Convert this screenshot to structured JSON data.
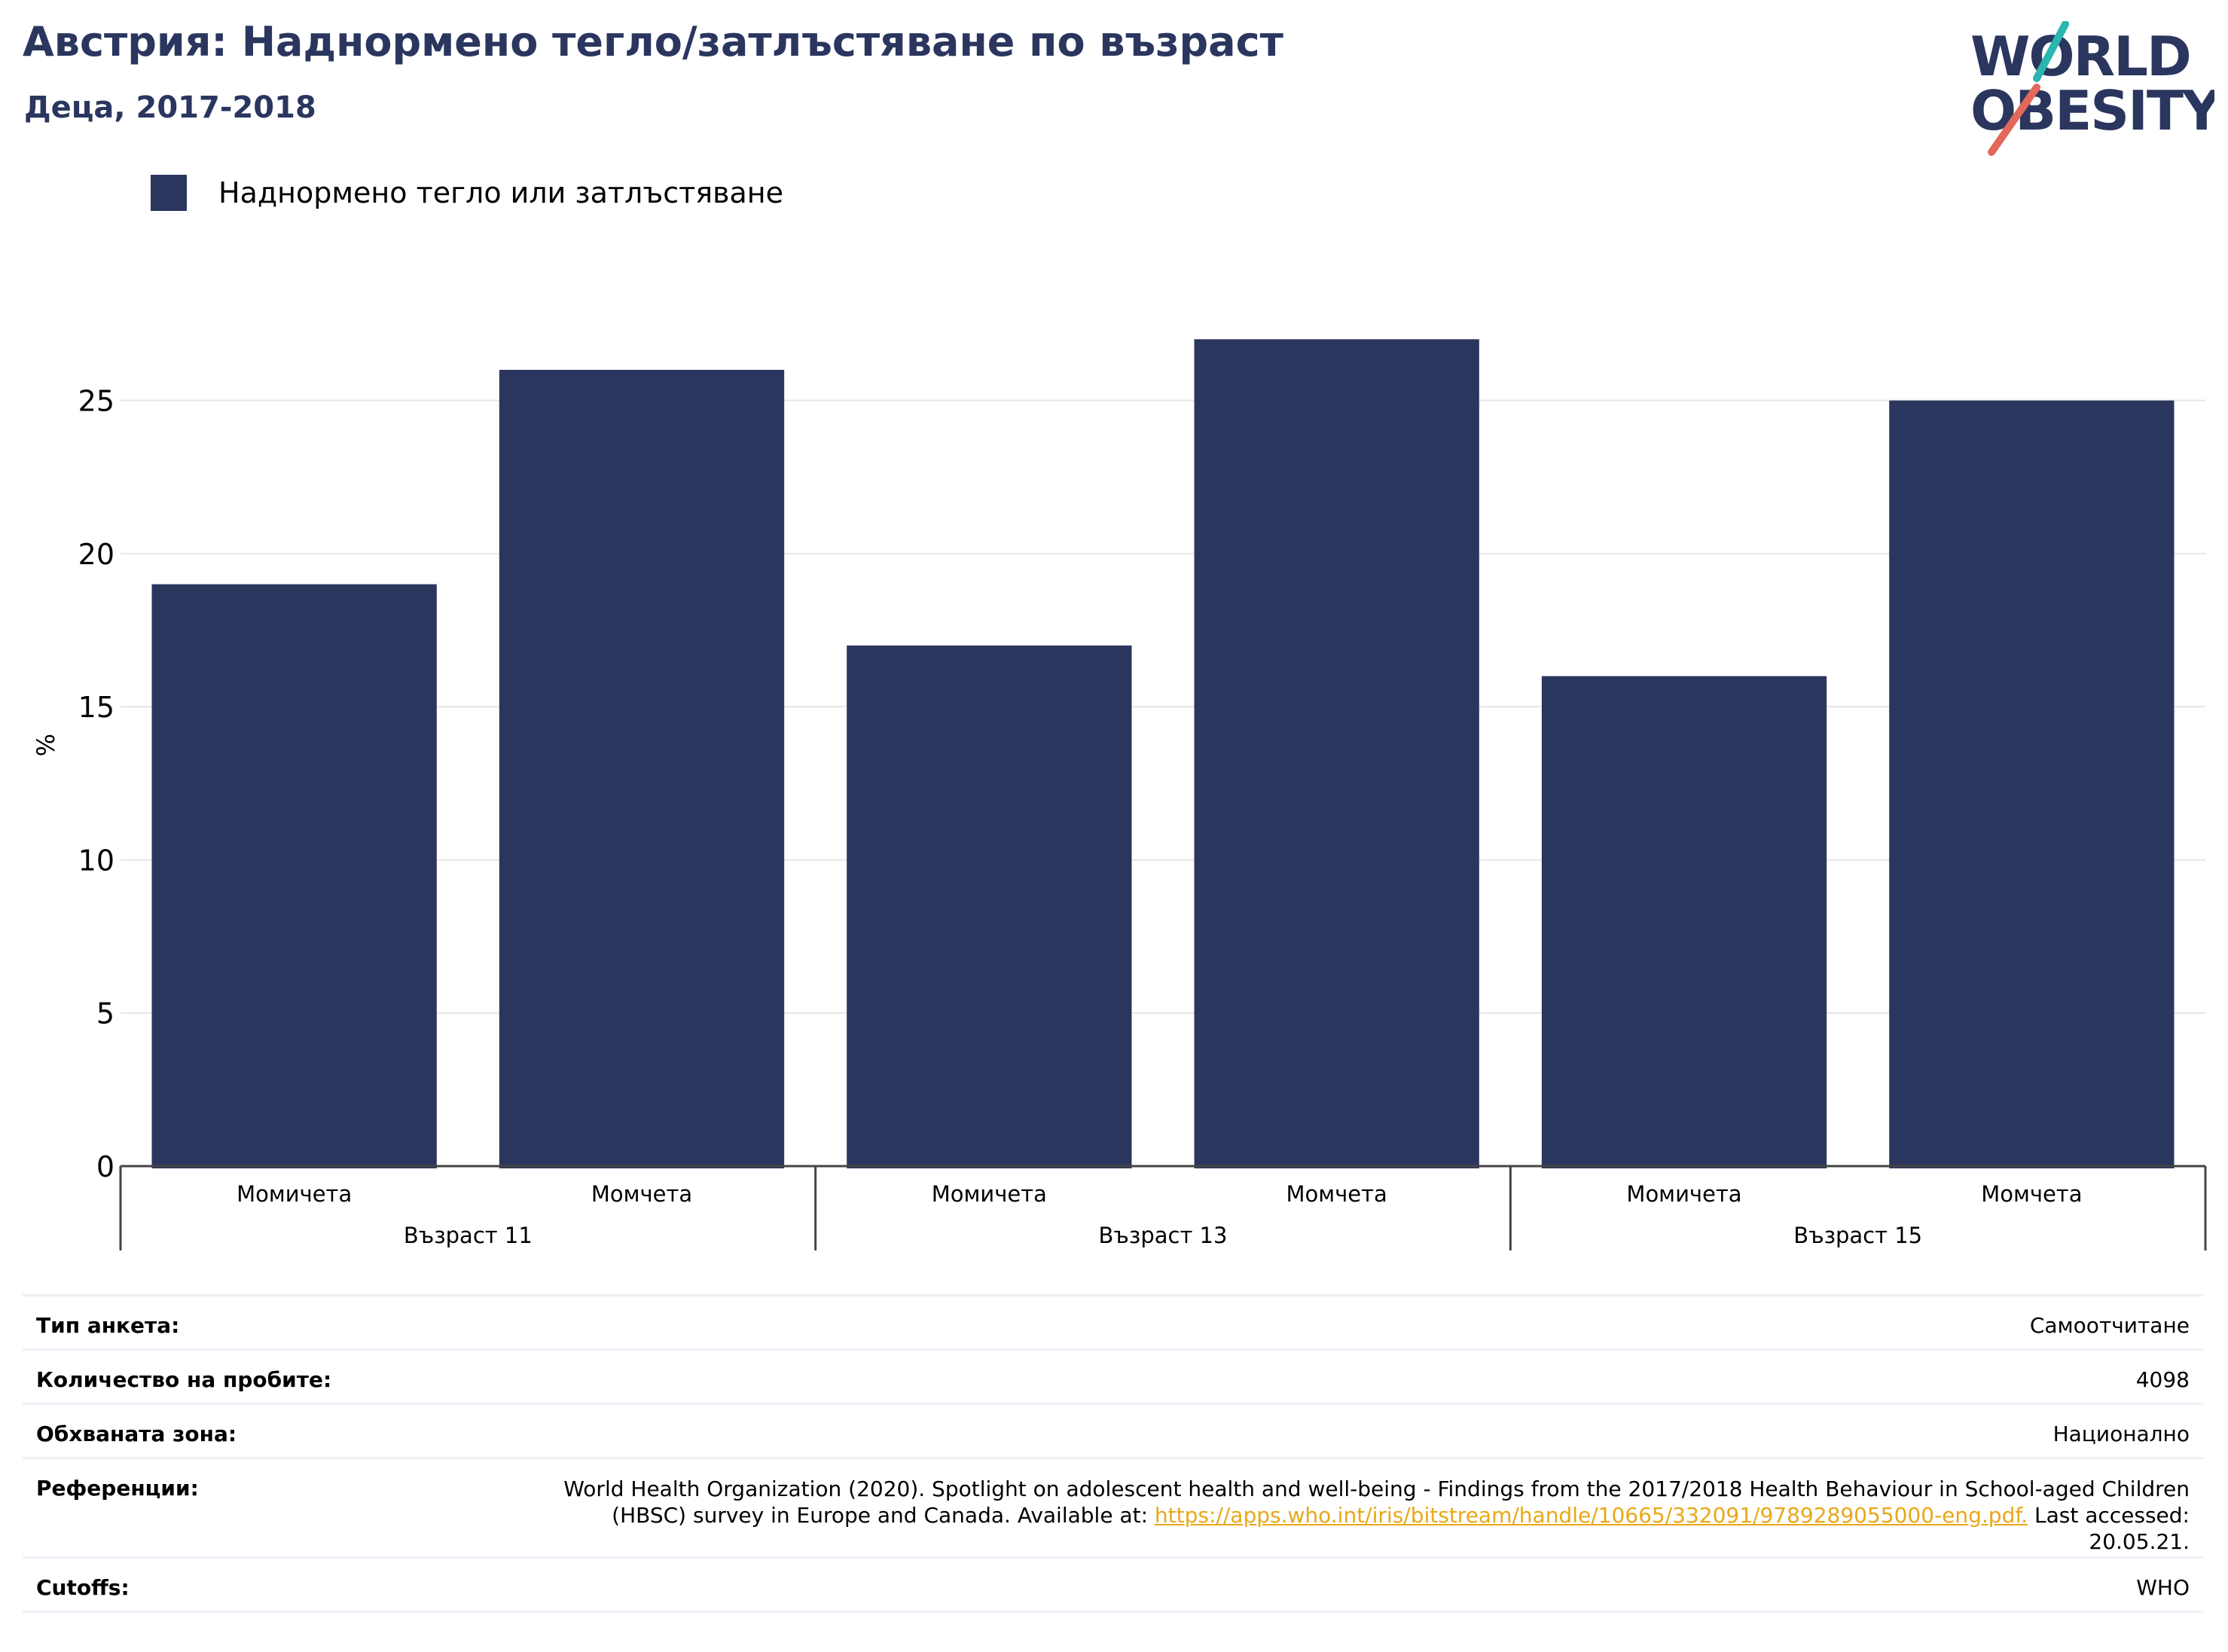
{
  "header": {
    "title": "Австрия: Наднормено тегло/затлъстяване по възраст",
    "subtitle": "Деца, 2017-2018"
  },
  "logo": {
    "line1": "WORLD",
    "line2": "OBESITY",
    "text_color": "#2b365f",
    "accent_teal": "#2bb6b0",
    "accent_red": "#e2685b"
  },
  "chart_data": {
    "type": "bar",
    "ylabel": "%",
    "ylim": [
      0,
      27.5
    ],
    "yticks": [
      0,
      5,
      10,
      15,
      20,
      25
    ],
    "grid": true,
    "legend_position": "top-left",
    "series": [
      {
        "name": "Наднормено тегло или затлъстяване",
        "color": "#2b365f",
        "values": [
          19,
          26,
          17,
          27,
          16,
          25
        ]
      }
    ],
    "categories": [
      "Момичета",
      "Момчета",
      "Момичета",
      "Момчета",
      "Момичета",
      "Момчета"
    ],
    "groups": [
      {
        "label": "Възраст 11",
        "span": 2
      },
      {
        "label": "Възраст 13",
        "span": 2
      },
      {
        "label": "Възраст 15",
        "span": 2
      }
    ]
  },
  "info": {
    "survey_type": {
      "label": "Тип анкета:",
      "value": "Самоотчитане"
    },
    "sample_size": {
      "label": "Количество на пробите:",
      "value": "4098"
    },
    "coverage": {
      "label": "Обхваната зона:",
      "value": "Национално"
    },
    "references": {
      "label": "Референции:",
      "text": "World Health Organization (2020). Spotlight on adolescent health and well-being - Findings from the 2017/2018 Health Behaviour in School-aged Children (HBSC) survey in Europe and Canada. Available at: ",
      "link": "https://apps.who.int/iris/bitstream/handle/10665/332091/9789289055000-eng.pdf.",
      "suffix": " Last accessed: 20.05.21."
    },
    "cutoffs": {
      "label": "Cutoffs:",
      "value": "WHO"
    }
  }
}
